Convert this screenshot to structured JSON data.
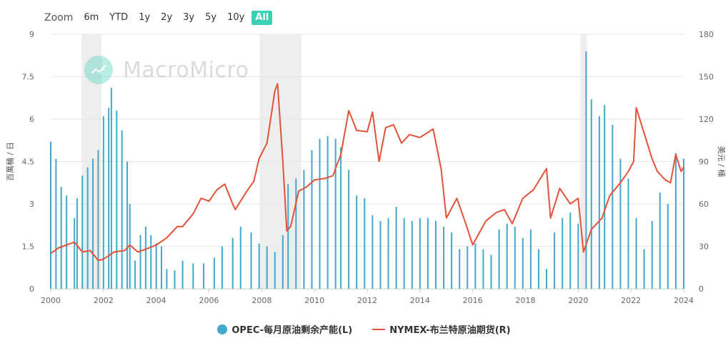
{
  "zoom": {
    "label": "Zoom",
    "buttons": [
      "6m",
      "YTD",
      "1y",
      "2y",
      "3y",
      "5y",
      "10y",
      "All"
    ],
    "active": "All"
  },
  "watermark": "MacroMicro",
  "legend": {
    "bars": "OPEC-每月原油剩余产能(L)",
    "line": "NYMEX-布兰特原油期货(R)"
  },
  "colors": {
    "bars": "#41a9cc",
    "line": "#e35239",
    "shade": "#eeeeee",
    "accent": "#3ccfb3",
    "grid": "#e6e6e6"
  },
  "chart_data": {
    "type": "bar+line",
    "ylabel_left": "百萬桶 / 日",
    "ylabel_right": "美元 / 桶",
    "y_left_range": [
      0,
      9
    ],
    "y_left_ticks": [
      "0",
      "1.5",
      "3",
      "4.5",
      "6",
      "7.5",
      "9"
    ],
    "y_right_range": [
      0,
      180
    ],
    "y_right_ticks": [
      "0",
      "30",
      "60",
      "90",
      "120",
      "150",
      "180"
    ],
    "x_range": [
      2000,
      2024
    ],
    "x_ticks": [
      "2000",
      "2002",
      "2004",
      "2006",
      "2008",
      "2010",
      "2012",
      "2014",
      "2016",
      "2018",
      "2020",
      "2022",
      "2024"
    ],
    "recessions": [
      [
        2001.17,
        2001.92
      ],
      [
        2007.92,
        2009.5
      ],
      [
        2020.08,
        2020.33
      ]
    ],
    "series": [
      {
        "name": "OPEC-每月原油剩余产能(L)",
        "kind": "bar",
        "points": [
          [
            2000.0,
            5.2
          ],
          [
            2000.2,
            4.6
          ],
          [
            2000.4,
            3.6
          ],
          [
            2000.6,
            3.3
          ],
          [
            2000.9,
            2.5
          ],
          [
            2001.0,
            3.2
          ],
          [
            2001.2,
            4.0
          ],
          [
            2001.4,
            4.3
          ],
          [
            2001.6,
            4.6
          ],
          [
            2001.8,
            4.9
          ],
          [
            2002.0,
            6.1
          ],
          [
            2002.2,
            6.4
          ],
          [
            2002.3,
            7.1
          ],
          [
            2002.5,
            6.3
          ],
          [
            2002.7,
            5.6
          ],
          [
            2002.9,
            4.5
          ],
          [
            2003.0,
            3.0
          ],
          [
            2003.2,
            1.0
          ],
          [
            2003.4,
            1.9
          ],
          [
            2003.6,
            2.2
          ],
          [
            2003.8,
            1.9
          ],
          [
            2004.0,
            1.6
          ],
          [
            2004.2,
            1.5
          ],
          [
            2004.4,
            0.7
          ],
          [
            2004.7,
            0.65
          ],
          [
            2005.0,
            1.0
          ],
          [
            2005.4,
            0.9
          ],
          [
            2005.8,
            0.9
          ],
          [
            2006.2,
            1.1
          ],
          [
            2006.5,
            1.5
          ],
          [
            2006.9,
            1.8
          ],
          [
            2007.2,
            2.2
          ],
          [
            2007.6,
            2.0
          ],
          [
            2007.9,
            1.6
          ],
          [
            2008.2,
            1.5
          ],
          [
            2008.5,
            1.3
          ],
          [
            2008.8,
            1.9
          ],
          [
            2009.0,
            3.7
          ],
          [
            2009.3,
            3.9
          ],
          [
            2009.6,
            4.2
          ],
          [
            2009.9,
            4.9
          ],
          [
            2010.2,
            5.3
          ],
          [
            2010.5,
            5.4
          ],
          [
            2010.8,
            5.3
          ],
          [
            2011.0,
            5.0
          ],
          [
            2011.3,
            4.2
          ],
          [
            2011.6,
            3.3
          ],
          [
            2011.9,
            3.2
          ],
          [
            2012.2,
            2.6
          ],
          [
            2012.5,
            2.4
          ],
          [
            2012.8,
            2.5
          ],
          [
            2013.1,
            2.9
          ],
          [
            2013.4,
            2.5
          ],
          [
            2013.7,
            2.4
          ],
          [
            2014.0,
            2.5
          ],
          [
            2014.3,
            2.5
          ],
          [
            2014.6,
            2.4
          ],
          [
            2014.9,
            2.2
          ],
          [
            2015.2,
            2.0
          ],
          [
            2015.5,
            1.4
          ],
          [
            2015.8,
            1.5
          ],
          [
            2016.1,
            1.6
          ],
          [
            2016.4,
            1.4
          ],
          [
            2016.7,
            1.2
          ],
          [
            2017.0,
            2.1
          ],
          [
            2017.3,
            2.3
          ],
          [
            2017.6,
            2.2
          ],
          [
            2017.9,
            1.8
          ],
          [
            2018.2,
            2.1
          ],
          [
            2018.5,
            1.4
          ],
          [
            2018.8,
            0.7
          ],
          [
            2019.1,
            2.0
          ],
          [
            2019.4,
            2.5
          ],
          [
            2019.7,
            2.7
          ],
          [
            2020.0,
            2.3
          ],
          [
            2020.3,
            8.4
          ],
          [
            2020.5,
            6.7
          ],
          [
            2020.8,
            6.1
          ],
          [
            2021.0,
            6.5
          ],
          [
            2021.3,
            5.8
          ],
          [
            2021.6,
            4.6
          ],
          [
            2021.9,
            3.9
          ],
          [
            2022.2,
            2.5
          ],
          [
            2022.5,
            1.4
          ],
          [
            2022.8,
            2.4
          ],
          [
            2023.1,
            3.4
          ],
          [
            2023.4,
            3.0
          ],
          [
            2023.7,
            4.8
          ],
          [
            2024.0,
            4.6
          ]
        ]
      },
      {
        "name": "NYMEX-布兰特原油期货(R)",
        "kind": "line",
        "points": [
          [
            2000.0,
            25
          ],
          [
            2000.3,
            29
          ],
          [
            2000.6,
            31
          ],
          [
            2000.9,
            33
          ],
          [
            2001.2,
            26
          ],
          [
            2001.5,
            27
          ],
          [
            2001.8,
            20
          ],
          [
            2002.0,
            21
          ],
          [
            2002.4,
            26
          ],
          [
            2002.8,
            27
          ],
          [
            2003.0,
            31
          ],
          [
            2003.3,
            26
          ],
          [
            2003.6,
            28
          ],
          [
            2004.0,
            31
          ],
          [
            2004.4,
            36
          ],
          [
            2004.8,
            44
          ],
          [
            2005.0,
            44
          ],
          [
            2005.4,
            53
          ],
          [
            2005.7,
            64
          ],
          [
            2006.0,
            62
          ],
          [
            2006.3,
            70
          ],
          [
            2006.6,
            74
          ],
          [
            2006.9,
            60
          ],
          [
            2007.0,
            56
          ],
          [
            2007.4,
            68
          ],
          [
            2007.7,
            76
          ],
          [
            2007.9,
            92
          ],
          [
            2008.2,
            103
          ],
          [
            2008.5,
            140
          ],
          [
            2008.6,
            145
          ],
          [
            2008.8,
            90
          ],
          [
            2008.95,
            41
          ],
          [
            2009.1,
            44
          ],
          [
            2009.4,
            69
          ],
          [
            2009.7,
            72
          ],
          [
            2010.0,
            77
          ],
          [
            2010.4,
            78
          ],
          [
            2010.7,
            80
          ],
          [
            2011.0,
            95
          ],
          [
            2011.3,
            126
          ],
          [
            2011.6,
            112
          ],
          [
            2012.0,
            111
          ],
          [
            2012.2,
            125
          ],
          [
            2012.45,
            90
          ],
          [
            2012.7,
            114
          ],
          [
            2013.0,
            116
          ],
          [
            2013.3,
            103
          ],
          [
            2013.6,
            109
          ],
          [
            2014.0,
            107
          ],
          [
            2014.5,
            113
          ],
          [
            2014.8,
            85
          ],
          [
            2015.0,
            50
          ],
          [
            2015.4,
            64
          ],
          [
            2015.7,
            48
          ],
          [
            2016.0,
            31
          ],
          [
            2016.2,
            38
          ],
          [
            2016.5,
            48
          ],
          [
            2016.9,
            54
          ],
          [
            2017.2,
            56
          ],
          [
            2017.5,
            46
          ],
          [
            2017.9,
            64
          ],
          [
            2018.3,
            70
          ],
          [
            2018.8,
            85
          ],
          [
            2018.95,
            50
          ],
          [
            2019.3,
            71
          ],
          [
            2019.7,
            60
          ],
          [
            2020.0,
            64
          ],
          [
            2020.2,
            26
          ],
          [
            2020.5,
            42
          ],
          [
            2020.9,
            50
          ],
          [
            2021.2,
            66
          ],
          [
            2021.6,
            75
          ],
          [
            2021.9,
            83
          ],
          [
            2022.1,
            90
          ],
          [
            2022.2,
            128
          ],
          [
            2022.5,
            110
          ],
          [
            2022.8,
            92
          ],
          [
            2023.0,
            83
          ],
          [
            2023.3,
            77
          ],
          [
            2023.5,
            75
          ],
          [
            2023.7,
            95
          ],
          [
            2023.9,
            83
          ],
          [
            2024.0,
            86
          ]
        ]
      }
    ]
  }
}
